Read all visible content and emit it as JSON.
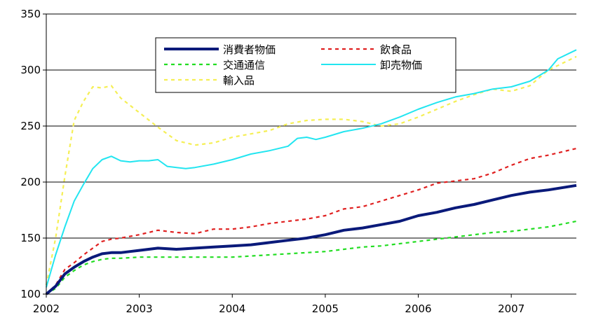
{
  "chart_data": {
    "type": "line",
    "title": "",
    "xlabel": "",
    "ylabel": "",
    "xlim": [
      2002,
      2007.7
    ],
    "ylim": [
      100,
      350
    ],
    "yticks": [
      100,
      150,
      200,
      250,
      300,
      350
    ],
    "xticks": [
      2002,
      2003,
      2004,
      2005,
      2006,
      2007
    ],
    "grid": "horizontal",
    "legend_position": "top-center",
    "series": [
      {
        "name": "消費者物価",
        "color": "#0a1a7a",
        "style": "solid-thick",
        "x": [
          2002,
          2002.1,
          2002.2,
          2002.3,
          2002.4,
          2002.5,
          2002.6,
          2002.7,
          2002.8,
          2002.9,
          2003,
          2003.2,
          2003.4,
          2003.6,
          2003.8,
          2004,
          2004.2,
          2004.4,
          2004.6,
          2004.8,
          2005,
          2005.2,
          2005.4,
          2005.6,
          2005.8,
          2006,
          2006.2,
          2006.4,
          2006.6,
          2006.8,
          2007,
          2007.2,
          2007.4,
          2007.7
        ],
        "y": [
          100,
          107,
          118,
          124,
          129,
          133,
          136,
          137,
          137,
          138,
          139,
          141,
          140,
          141,
          142,
          143,
          144,
          146,
          148,
          150,
          153,
          157,
          159,
          162,
          165,
          170,
          173,
          177,
          180,
          184,
          188,
          191,
          193,
          197
        ]
      },
      {
        "name": "飲食品",
        "color": "#e02020",
        "style": "dotted",
        "x": [
          2002,
          2002.1,
          2002.2,
          2002.3,
          2002.4,
          2002.5,
          2002.6,
          2002.7,
          2002.8,
          2003,
          2003.2,
          2003.4,
          2003.6,
          2003.8,
          2004,
          2004.2,
          2004.4,
          2004.6,
          2004.8,
          2005,
          2005.2,
          2005.4,
          2005.6,
          2005.8,
          2006,
          2006.2,
          2006.4,
          2006.6,
          2006.8,
          2007,
          2007.2,
          2007.4,
          2007.7
        ],
        "y": [
          100,
          108,
          122,
          128,
          135,
          141,
          147,
          149,
          150,
          153,
          157,
          155,
          154,
          158,
          158,
          160,
          163,
          165,
          167,
          170,
          176,
          178,
          183,
          188,
          193,
          199,
          201,
          203,
          208,
          215,
          221,
          224,
          230
        ]
      },
      {
        "name": "交通通信",
        "color": "#22dd22",
        "style": "dotted",
        "x": [
          2002,
          2002.1,
          2002.2,
          2002.3,
          2002.4,
          2002.5,
          2002.6,
          2002.7,
          2002.8,
          2003,
          2003.2,
          2003.4,
          2003.6,
          2003.8,
          2004,
          2004.2,
          2004.4,
          2004.6,
          2004.8,
          2005,
          2005.2,
          2005.4,
          2005.6,
          2005.8,
          2006,
          2006.2,
          2006.4,
          2006.6,
          2006.8,
          2007,
          2007.2,
          2007.4,
          2007.7
        ],
        "y": [
          100,
          105,
          115,
          121,
          126,
          129,
          131,
          132,
          132,
          133,
          133,
          133,
          133,
          133,
          133,
          134,
          135,
          136,
          137,
          138,
          140,
          142,
          143,
          145,
          147,
          149,
          151,
          153,
          155,
          156,
          158,
          160,
          165
        ]
      },
      {
        "name": "卸売物価",
        "color": "#22e5f0",
        "style": "solid",
        "x": [
          2002,
          2002.1,
          2002.2,
          2002.3,
          2002.4,
          2002.5,
          2002.6,
          2002.7,
          2002.8,
          2002.9,
          2003,
          2003.1,
          2003.2,
          2003.3,
          2003.5,
          2003.6,
          2003.8,
          2004,
          2004.2,
          2004.4,
          2004.6,
          2004.7,
          2004.8,
          2004.9,
          2005,
          2005.2,
          2005.4,
          2005.6,
          2005.8,
          2006,
          2006.1,
          2006.2,
          2006.4,
          2006.6,
          2006.8,
          2007,
          2007.2,
          2007.4,
          2007.5,
          2007.7
        ],
        "y": [
          106,
          135,
          160,
          183,
          198,
          212,
          220,
          223,
          219,
          218,
          219,
          219,
          220,
          214,
          212,
          213,
          216,
          220,
          225,
          228,
          232,
          239,
          240,
          238,
          240,
          245,
          248,
          252,
          258,
          265,
          268,
          271,
          276,
          279,
          283,
          285,
          290,
          300,
          310,
          318
        ]
      },
      {
        "name": "輸入品",
        "color": "#f5ef55",
        "style": "dotted",
        "x": [
          2002,
          2002.1,
          2002.2,
          2002.3,
          2002.4,
          2002.5,
          2002.6,
          2002.7,
          2002.8,
          2003,
          2003.2,
          2003.4,
          2003.6,
          2003.8,
          2004,
          2004.2,
          2004.4,
          2004.6,
          2004.8,
          2005,
          2005.2,
          2005.4,
          2005.6,
          2005.8,
          2006,
          2006.2,
          2006.4,
          2006.6,
          2006.8,
          2007,
          2007.2,
          2007.4,
          2007.7
        ],
        "y": [
          108,
          150,
          205,
          255,
          272,
          285,
          284,
          286,
          275,
          262,
          249,
          237,
          233,
          235,
          240,
          243,
          246,
          252,
          255,
          256,
          256,
          254,
          250,
          252,
          258,
          265,
          272,
          278,
          283,
          281,
          286,
          300,
          312
        ]
      }
    ]
  }
}
